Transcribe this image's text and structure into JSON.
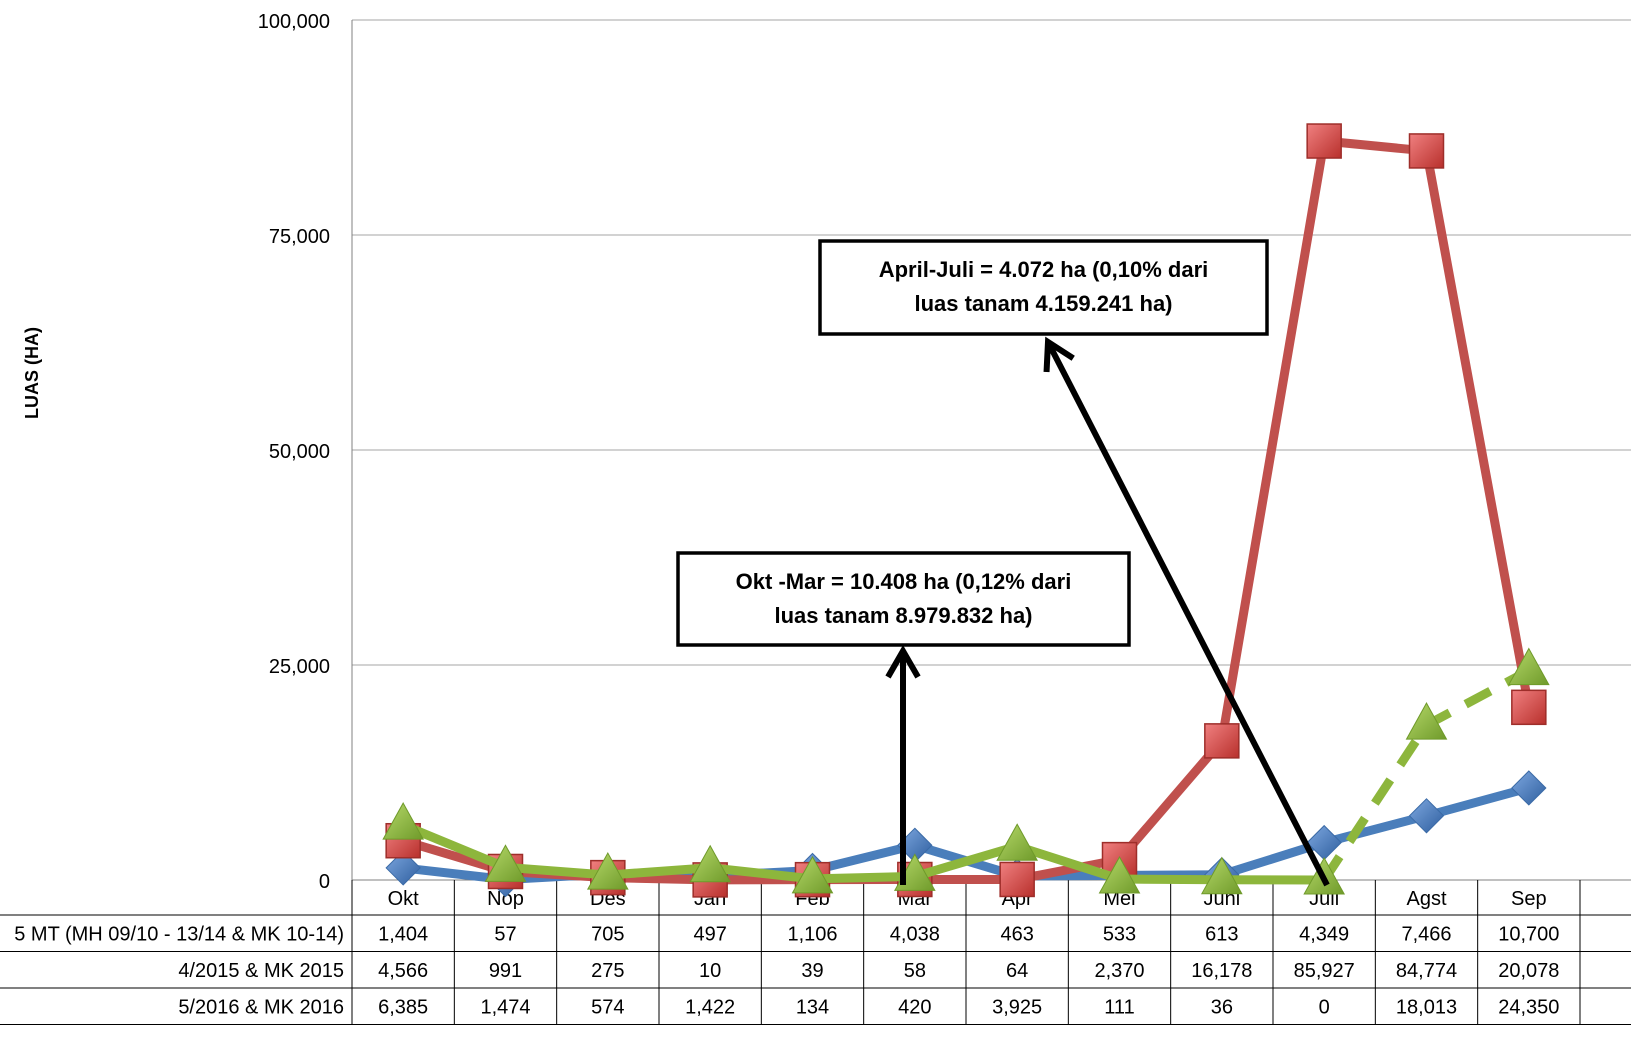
{
  "chart_data": {
    "type": "line",
    "ylabel": "LUAS (HA)",
    "ylim": [
      0,
      100000
    ],
    "yticks": [
      {
        "value": 0,
        "label": "0"
      },
      {
        "value": 25000,
        "label": "25,000"
      },
      {
        "value": 50000,
        "label": "50,000"
      },
      {
        "value": 75000,
        "label": "75,000"
      },
      {
        "value": 100000,
        "label": "100,000"
      }
    ],
    "grid": true,
    "categories": [
      "Okt",
      "Nop",
      "Des",
      "Jan",
      "Feb",
      "Mar",
      "Apr",
      "Mei",
      "Juni",
      "Juli",
      "Agst",
      "Sep"
    ],
    "series": [
      {
        "name": "5 MT (MH 09/10 - 13/14 & MK 10-14)",
        "color": "#4a7ebb",
        "marker": "diamond",
        "values": [
          1404,
          57,
          705,
          497,
          1106,
          4038,
          463,
          533,
          613,
          4349,
          7466,
          10700
        ],
        "labels": [
          "1,404",
          "57",
          "705",
          "497",
          "1,106",
          "4,038",
          "463",
          "533",
          "613",
          "4,349",
          "7,466",
          "10,700"
        ]
      },
      {
        "name": "4/2015 & MK 2015",
        "color": "#c0504d",
        "marker": "square",
        "values": [
          4566,
          991,
          275,
          10,
          39,
          58,
          64,
          2370,
          16178,
          85927,
          84774,
          20078
        ],
        "labels": [
          "4,566",
          "991",
          "275",
          "10",
          "39",
          "58",
          "64",
          "2,370",
          "16,178",
          "85,927",
          "84,774",
          "20,078"
        ]
      },
      {
        "name": "5/2016 & MK 2016",
        "color": "#8db63c",
        "marker": "triangle",
        "dashed_from_index": 9,
        "values": [
          6385,
          1474,
          574,
          1422,
          134,
          420,
          3925,
          111,
          36,
          0,
          18013,
          24350
        ],
        "labels": [
          "6,385",
          "1,474",
          "574",
          "1,422",
          "134",
          "420",
          "3,925",
          "111",
          "36",
          "0",
          "18,013",
          "24,350"
        ]
      }
    ],
    "annotations": [
      {
        "line1": "April-Juli = 4.072 ha (0,10% dari",
        "line2": "luas tanam 4.159.241 ha)"
      },
      {
        "line1": "Okt -Mar = 10.408 ha (0,12% dari",
        "line2": "luas tanam 8.979.832 ha)"
      }
    ]
  }
}
